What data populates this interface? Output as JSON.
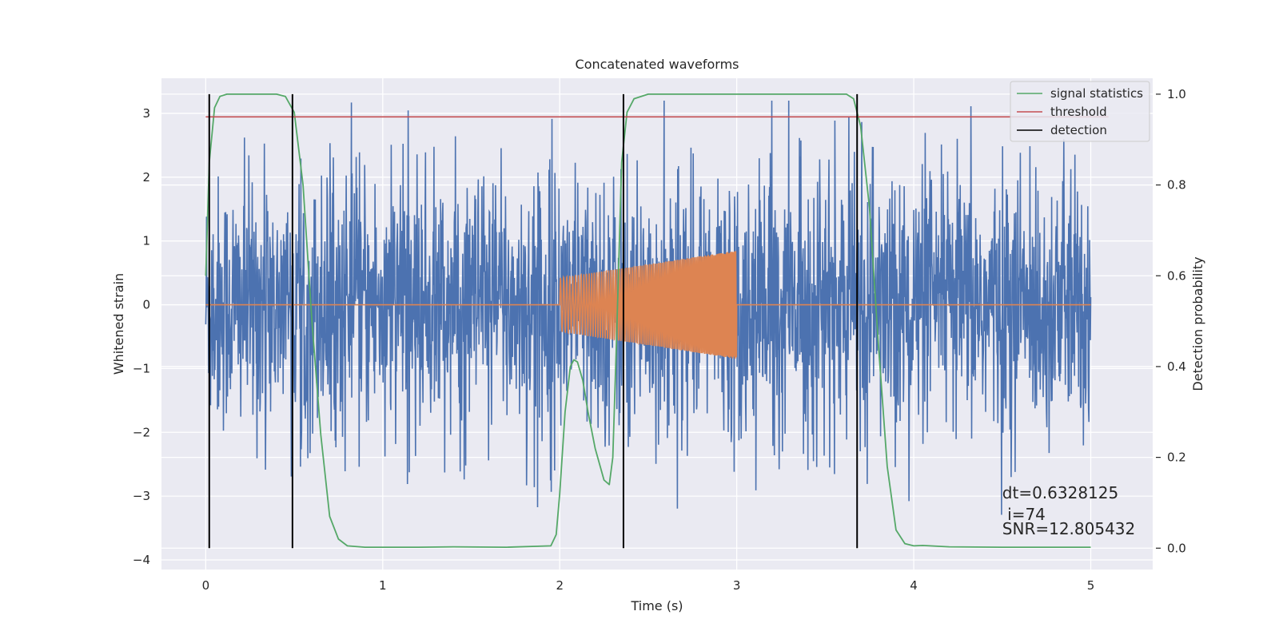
{
  "chart_data": {
    "type": "line",
    "title": "Concatenated waveforms",
    "xlabel": "Time (s)",
    "ylabel": "Whitened strain",
    "y2label": "Detection probability",
    "xlim": [
      -0.25,
      5.35
    ],
    "ylim": [
      -4.15,
      3.55
    ],
    "y2lim": [
      -0.047,
      1.035
    ],
    "x_ticks": [
      0,
      1,
      2,
      3,
      4,
      5
    ],
    "x_tick_labels": [
      "0",
      "1",
      "2",
      "3",
      "4",
      "5"
    ],
    "y_ticks": [
      -4,
      -3,
      -2,
      -1,
      0,
      1,
      2,
      3
    ],
    "y_tick_labels": [
      "−4",
      "−3",
      "−2",
      "−1",
      "0",
      "1",
      "2",
      "3"
    ],
    "y2_ticks": [
      0.0,
      0.2,
      0.4,
      0.6,
      0.8,
      1.0
    ],
    "y2_tick_labels": [
      "0.0",
      "0.2",
      "0.4",
      "0.6",
      "0.8",
      "1.0"
    ],
    "grid": true,
    "legend_position": "top-right",
    "legend": [
      {
        "label": "signal statistics",
        "color": "#55a868"
      },
      {
        "label": "threshold",
        "color": "#c44e52"
      },
      {
        "label": "detection",
        "color": "#000000"
      }
    ],
    "series": [
      {
        "role": "whitened strain",
        "axis": "left",
        "color": "#4c72b0",
        "x_range": [
          0,
          5
        ],
        "typical_amplitude": 1.6,
        "peak_extremes": [
          -3.85,
          3.2
        ]
      },
      {
        "role": "injected waveform",
        "axis": "left",
        "color": "#dd8452",
        "x": [
          0,
          2,
          2.0,
          3.0,
          3.0,
          5
        ],
        "envelope_upper": [
          0,
          0,
          0.42,
          0.85,
          0,
          0
        ],
        "envelope_lower": [
          0,
          0,
          -0.42,
          -0.85,
          0,
          0
        ]
      },
      {
        "name": "signal statistics",
        "axis": "right",
        "color": "#55a868",
        "x": [
          0,
          0.02,
          0.05,
          0.08,
          0.12,
          0.2,
          0.4,
          0.45,
          0.5,
          0.55,
          0.6,
          0.65,
          0.7,
          0.75,
          0.8,
          0.9,
          1.2,
          1.4,
          1.7,
          1.95,
          1.98,
          2.0,
          2.03,
          2.06,
          2.08,
          2.1,
          2.13,
          2.16,
          2.2,
          2.25,
          2.28,
          2.3,
          2.32,
          2.35,
          2.38,
          2.42,
          2.5,
          3.0,
          3.5,
          3.62,
          3.66,
          3.7,
          3.75,
          3.8,
          3.85,
          3.9,
          3.95,
          4.0,
          4.05,
          4.2,
          4.5,
          5.0
        ],
        "y": [
          0.6,
          0.85,
          0.97,
          0.995,
          1.0,
          1.0,
          1.0,
          0.995,
          0.96,
          0.8,
          0.5,
          0.25,
          0.07,
          0.02,
          0.005,
          0.002,
          0.002,
          0.003,
          0.002,
          0.005,
          0.03,
          0.12,
          0.3,
          0.4,
          0.415,
          0.41,
          0.37,
          0.3,
          0.22,
          0.15,
          0.14,
          0.2,
          0.45,
          0.85,
          0.96,
          0.99,
          1.0,
          1.0,
          1.0,
          1.0,
          0.99,
          0.93,
          0.75,
          0.45,
          0.18,
          0.04,
          0.01,
          0.005,
          0.006,
          0.003,
          0.002,
          0.002
        ]
      },
      {
        "name": "threshold",
        "axis": "right",
        "color": "#c44e52",
        "x": [
          0,
          5.1
        ],
        "y": [
          0.95,
          0.95
        ]
      },
      {
        "name": "detection",
        "axis": "right",
        "color": "#000000",
        "type": "vlines",
        "x": [
          0.02,
          0.49,
          2.36,
          3.68
        ],
        "ymin": 0.0,
        "ymax": 1.0
      }
    ],
    "annotations": [
      {
        "text": "dt=0.6328125",
        "x": 4.5,
        "y2": 0.11
      },
      {
        "text": " i=74",
        "x": 4.5,
        "y2": 0.062
      },
      {
        "text": "SNR=12.805432",
        "x": 4.5,
        "y2": 0.03
      }
    ]
  }
}
